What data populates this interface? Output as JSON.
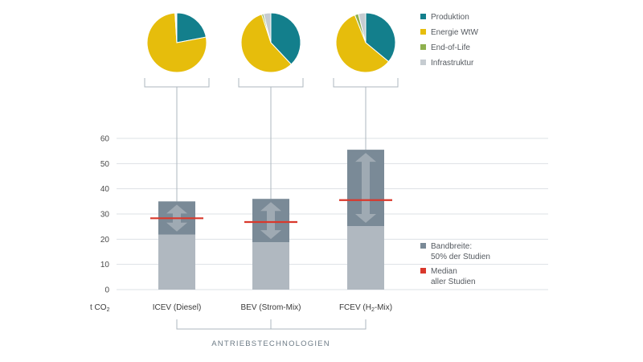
{
  "colors": {
    "produktion": "#137f8c",
    "energie": "#e6bd0c",
    "eol": "#8fb04e",
    "infra": "#c6ccd1",
    "range": "#7a8a97",
    "base": "#b0b8c0",
    "median": "#d9382c",
    "arrow": "#9faab3"
  },
  "chart_data": {
    "type": "bar",
    "ylabel_prefix": "t CO",
    "ylabel_sub": "2",
    "ylim": [
      0,
      60
    ],
    "yticks": [
      0,
      10,
      20,
      30,
      40,
      50,
      60
    ],
    "grid": true,
    "xaxis_title": "ANTRIEBSTECHNOLOGIEN",
    "categories": [
      {
        "label": "ICEV (Diesel)",
        "label_parts": [
          "ICEV (Diesel)"
        ]
      },
      {
        "label": "BEV (Strom-Mix)",
        "label_parts": [
          "BEV (Strom-Mix)"
        ]
      },
      {
        "label": "FCEV (H2-Mix)",
        "label_parts": [
          "FCEV (H",
          "2",
          "-Mix)"
        ]
      }
    ],
    "range_low": [
      21.8,
      18.8,
      25.2
    ],
    "range_high": [
      35.0,
      36.0,
      55.5
    ],
    "median": [
      28.3,
      26.8,
      35.5
    ],
    "pies": [
      {
        "produktion": 22,
        "energie": 77,
        "eol": 0.5,
        "infra": 0.5
      },
      {
        "produktion": 38,
        "energie": 57,
        "eol": 1,
        "infra": 4
      },
      {
        "produktion": 36,
        "energie": 58,
        "eol": 2,
        "infra": 4
      }
    ],
    "legend": [
      {
        "key": "produktion",
        "label": "Produktion"
      },
      {
        "key": "energie",
        "label": "Energie WtW"
      },
      {
        "key": "eol",
        "label": "End-of-Life"
      },
      {
        "key": "infra",
        "label": "Infrastruktur"
      }
    ],
    "legend2": [
      {
        "key": "range",
        "lines": [
          "Bandbreite:",
          "50% der Studien"
        ]
      },
      {
        "key": "median",
        "lines": [
          "Median",
          "aller Studien"
        ]
      }
    ]
  }
}
